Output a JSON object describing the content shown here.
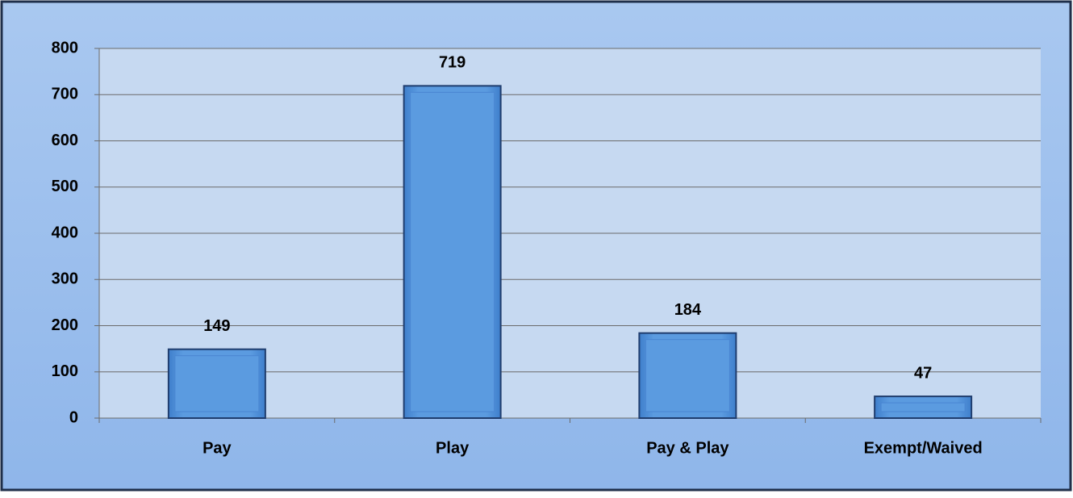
{
  "chart_data": {
    "type": "bar",
    "categories": [
      "Pay",
      "Play",
      "Pay & Play",
      "Exempt/Waived"
    ],
    "values": [
      149,
      719,
      184,
      47
    ],
    "color": "#5b9be0",
    "ylim": [
      0,
      800
    ],
    "yticks": [
      0,
      100,
      200,
      300,
      400,
      500,
      600,
      700,
      800
    ],
    "grid": true
  }
}
